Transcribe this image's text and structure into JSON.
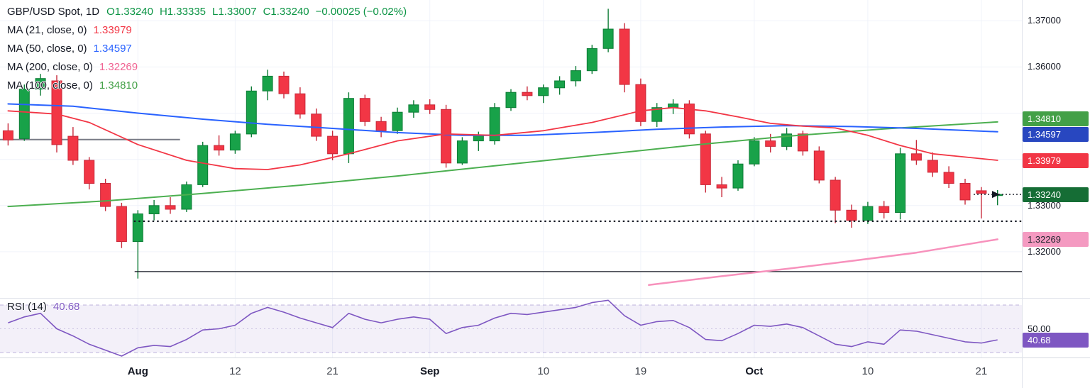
{
  "header": {
    "symbol": "GBP/USD Spot, 1D",
    "open": "O1.33240",
    "high": "H1.33335",
    "low": "L1.33007",
    "close": "C1.33240",
    "change": "−0.00025 (−0.02%)",
    "ohlc_color": "#0b9444"
  },
  "indicators": [
    {
      "label": "MA (21, close, 0)",
      "value": "1.33979",
      "color": "#f23645"
    },
    {
      "label": "MA (50, close, 0)",
      "value": "1.34597",
      "color": "#2962ff"
    },
    {
      "label": "MA (200, close, 0)",
      "value": "1.32269",
      "color": "#f06292"
    },
    {
      "label": "MA (100, close, 0)",
      "value": "1.34810",
      "color": "#43a047"
    }
  ],
  "rsi_pane": {
    "label": "RSI (14)",
    "value": "40.68",
    "value_color": "#7e57c2",
    "mid_label": "50.00",
    "badge_text": "40.68",
    "badge_bg": "#7e57c2",
    "badge_fg": "#ffffff"
  },
  "price_axis": {
    "plain_labels": [
      {
        "text": "1.37000",
        "price": 1.37
      },
      {
        "text": "1.36000",
        "price": 1.36
      },
      {
        "text": "1.33000",
        "price": 1.33
      },
      {
        "text": "1.32000",
        "price": 1.32
      }
    ],
    "badges": [
      {
        "text": "1.34810",
        "price": 1.3481,
        "bg": "#43a047",
        "fg": "#ffffff"
      },
      {
        "text": "1.34597",
        "price": 1.34597,
        "bg": "#2847c0",
        "fg": "#ffffff"
      },
      {
        "text": "1.33979",
        "price": 1.33979,
        "bg": "#f23645",
        "fg": "#ffffff"
      },
      {
        "text": "1.33240",
        "price": 1.3324,
        "bg": "#156d35",
        "fg": "#ffffff"
      },
      {
        "text": "1.32269",
        "price": 1.32269,
        "bg": "#f49ac1",
        "fg": "#22262f"
      }
    ]
  },
  "chart_data": {
    "type": "candlestick",
    "title": "GBP/USD Spot, 1D",
    "price_range": {
      "min": 1.31,
      "max": 1.3745
    },
    "grid_prices": [
      1.32,
      1.33,
      1.34,
      1.35,
      1.36,
      1.37
    ],
    "up_color": "#18a249",
    "up_stroke": "#0d7c36",
    "down_color": "#f23645",
    "down_stroke": "#c8293a",
    "candles_ohlc": [
      [
        1.3462,
        1.3478,
        1.343,
        1.3442
      ],
      [
        1.3445,
        1.3562,
        1.344,
        1.3552
      ],
      [
        1.3552,
        1.3585,
        1.3538,
        1.3575
      ],
      [
        1.357,
        1.3582,
        1.3415,
        1.3432
      ],
      [
        1.345,
        1.347,
        1.3388,
        1.3398
      ],
      [
        1.3398,
        1.3405,
        1.3335,
        1.3348
      ],
      [
        1.3348,
        1.3358,
        1.3288,
        1.3298
      ],
      [
        1.3298,
        1.3306,
        1.3208,
        1.3222
      ],
      [
        1.3222,
        1.329,
        1.3142,
        1.3282
      ],
      [
        1.3282,
        1.3312,
        1.3268,
        1.33
      ],
      [
        1.33,
        1.3318,
        1.3282,
        1.3292
      ],
      [
        1.3292,
        1.3352,
        1.3286,
        1.3345
      ],
      [
        1.3345,
        1.3438,
        1.334,
        1.343
      ],
      [
        1.343,
        1.3452,
        1.3408,
        1.342
      ],
      [
        1.342,
        1.3462,
        1.3412,
        1.3455
      ],
      [
        1.3455,
        1.3558,
        1.3448,
        1.3548
      ],
      [
        1.3548,
        1.3594,
        1.3528,
        1.358
      ],
      [
        1.358,
        1.359,
        1.3532,
        1.3542
      ],
      [
        1.3542,
        1.3556,
        1.3488,
        1.3498
      ],
      [
        1.3498,
        1.351,
        1.344,
        1.345
      ],
      [
        1.345,
        1.3462,
        1.3398,
        1.3412
      ],
      [
        1.3412,
        1.3545,
        1.3392,
        1.3532
      ],
      [
        1.3532,
        1.354,
        1.3472,
        1.3482
      ],
      [
        1.3482,
        1.3492,
        1.3448,
        1.3462
      ],
      [
        1.3462,
        1.3512,
        1.3455,
        1.3502
      ],
      [
        1.3502,
        1.3528,
        1.349,
        1.3518
      ],
      [
        1.3518,
        1.353,
        1.3498,
        1.3508
      ],
      [
        1.3508,
        1.3518,
        1.3382,
        1.3392
      ],
      [
        1.3392,
        1.3448,
        1.3388,
        1.344
      ],
      [
        1.344,
        1.346,
        1.3418,
        1.3452
      ],
      [
        1.344,
        1.3522,
        1.3432,
        1.3512
      ],
      [
        1.3512,
        1.3552,
        1.3505,
        1.3545
      ],
      [
        1.3545,
        1.3558,
        1.3528,
        1.3538
      ],
      [
        1.3538,
        1.3562,
        1.3522,
        1.3555
      ],
      [
        1.3555,
        1.358,
        1.354,
        1.357
      ],
      [
        1.357,
        1.3602,
        1.3558,
        1.3592
      ],
      [
        1.3592,
        1.3648,
        1.3585,
        1.364
      ],
      [
        1.364,
        1.3726,
        1.3632,
        1.3682
      ],
      [
        1.3682,
        1.3695,
        1.3545,
        1.3562
      ],
      [
        1.3562,
        1.3575,
        1.3472,
        1.3482
      ],
      [
        1.3482,
        1.3522,
        1.347,
        1.3512
      ],
      [
        1.3512,
        1.353,
        1.3498,
        1.352
      ],
      [
        1.352,
        1.3528,
        1.3445,
        1.3455
      ],
      [
        1.3455,
        1.3462,
        1.3328,
        1.3345
      ],
      [
        1.3345,
        1.3362,
        1.3318,
        1.3338
      ],
      [
        1.3338,
        1.3398,
        1.3332,
        1.339
      ],
      [
        1.339,
        1.3448,
        1.3385,
        1.344
      ],
      [
        1.344,
        1.3455,
        1.3415,
        1.3428
      ],
      [
        1.3428,
        1.3468,
        1.342,
        1.3455
      ],
      [
        1.3455,
        1.3462,
        1.3408,
        1.3418
      ],
      [
        1.3418,
        1.3428,
        1.3348,
        1.3355
      ],
      [
        1.3355,
        1.3362,
        1.3262,
        1.329
      ],
      [
        1.329,
        1.3302,
        1.3252,
        1.3268
      ],
      [
        1.3268,
        1.3308,
        1.326,
        1.3298
      ],
      [
        1.3298,
        1.331,
        1.3272,
        1.3285
      ],
      [
        1.3285,
        1.3425,
        1.327,
        1.3412
      ],
      [
        1.3412,
        1.3442,
        1.3388,
        1.3398
      ],
      [
        1.3398,
        1.3415,
        1.3362,
        1.3372
      ],
      [
        1.3372,
        1.3385,
        1.3338,
        1.3348
      ],
      [
        1.3348,
        1.3358,
        1.3302,
        1.3312
      ],
      [
        1.3332,
        1.334,
        1.3272,
        1.33265
      ],
      [
        1.3324,
        1.33335,
        1.33007,
        1.3324
      ]
    ],
    "time_ticks": [
      {
        "index": 8,
        "label": "Aug",
        "major": true
      },
      {
        "index": 14,
        "label": "12",
        "major": false
      },
      {
        "index": 20,
        "label": "21",
        "major": false
      },
      {
        "index": 26,
        "label": "Sep",
        "major": true
      },
      {
        "index": 33,
        "label": "10",
        "major": false
      },
      {
        "index": 39,
        "label": "19",
        "major": false
      },
      {
        "index": 46,
        "label": "Oct",
        "major": true
      },
      {
        "index": 53,
        "label": "10",
        "major": false
      },
      {
        "index": 60,
        "label": "21",
        "major": false
      }
    ],
    "moving_averages": [
      {
        "name": "ma100",
        "color": "#4caf50",
        "width": 2,
        "points": [
          [
            0,
            1.3298
          ],
          [
            6,
            1.331
          ],
          [
            12,
            1.3326
          ],
          [
            18,
            1.3344
          ],
          [
            24,
            1.3364
          ],
          [
            30,
            1.3386
          ],
          [
            36,
            1.3408
          ],
          [
            42,
            1.343
          ],
          [
            48,
            1.345
          ],
          [
            54,
            1.3466
          ],
          [
            61,
            1.3481
          ]
        ]
      },
      {
        "name": "ma50",
        "color": "#2962ff",
        "width": 2,
        "points": [
          [
            0,
            1.352
          ],
          [
            4,
            1.3515
          ],
          [
            8,
            1.35
          ],
          [
            12,
            1.3487
          ],
          [
            16,
            1.3476
          ],
          [
            20,
            1.3467
          ],
          [
            24,
            1.3458
          ],
          [
            28,
            1.3452
          ],
          [
            32,
            1.3452
          ],
          [
            36,
            1.3458
          ],
          [
            40,
            1.3465
          ],
          [
            44,
            1.347
          ],
          [
            48,
            1.3473
          ],
          [
            52,
            1.3471
          ],
          [
            56,
            1.3467
          ],
          [
            61,
            1.34597
          ]
        ]
      },
      {
        "name": "ma21",
        "color": "#f23645",
        "width": 1.8,
        "points": [
          [
            0,
            1.3505
          ],
          [
            3,
            1.3498
          ],
          [
            5,
            1.348
          ],
          [
            8,
            1.3432
          ],
          [
            11,
            1.3398
          ],
          [
            14,
            1.338
          ],
          [
            16,
            1.3378
          ],
          [
            18,
            1.3388
          ],
          [
            21,
            1.3412
          ],
          [
            24,
            1.344
          ],
          [
            27,
            1.3455
          ],
          [
            30,
            1.3452
          ],
          [
            33,
            1.3462
          ],
          [
            36,
            1.348
          ],
          [
            39,
            1.3505
          ],
          [
            41,
            1.3512
          ],
          [
            43,
            1.3505
          ],
          [
            45,
            1.3492
          ],
          [
            47,
            1.3478
          ],
          [
            49,
            1.3472
          ],
          [
            51,
            1.3468
          ],
          [
            53,
            1.3452
          ],
          [
            55,
            1.343
          ],
          [
            57,
            1.3412
          ],
          [
            59,
            1.3405
          ],
          [
            61,
            1.33979
          ]
        ]
      },
      {
        "name": "ma200",
        "color": "#f791bc",
        "width": 2.5,
        "points": [
          [
            39.5,
            1.3128
          ],
          [
            44,
            1.3147
          ],
          [
            48,
            1.3163
          ],
          [
            52,
            1.318
          ],
          [
            56,
            1.3198
          ],
          [
            61,
            1.32269
          ]
        ]
      }
    ],
    "annotations": {
      "gray_level": {
        "price": 1.3443,
        "from": -0.5,
        "to": 10.6,
        "color": "#787b86"
      },
      "dotted_level": {
        "price": 1.3266,
        "from": 7.8,
        "to": 62.5,
        "color": "#131722"
      },
      "solid_level": {
        "price": 1.3157,
        "from": 7.8,
        "to": 62.5,
        "color": "#131722"
      },
      "last_price": 1.3324
    },
    "rsi": {
      "period": 14,
      "color": "#7e57c2",
      "upper": 70,
      "mid": 50,
      "lower": 30,
      "values": [
        55,
        60,
        63,
        50,
        44,
        37,
        32,
        27,
        34,
        36,
        35,
        41,
        49,
        50,
        53,
        63,
        68,
        64,
        59,
        55,
        51,
        63,
        58,
        55,
        58,
        60,
        58,
        46,
        51,
        53,
        59,
        63,
        62,
        64,
        66,
        68,
        72,
        74,
        61,
        53,
        56,
        57,
        51,
        41,
        40,
        46,
        53,
        52,
        54,
        51,
        44,
        37,
        35,
        39,
        37,
        49,
        48,
        45,
        42,
        39,
        38,
        40.68
      ]
    }
  }
}
